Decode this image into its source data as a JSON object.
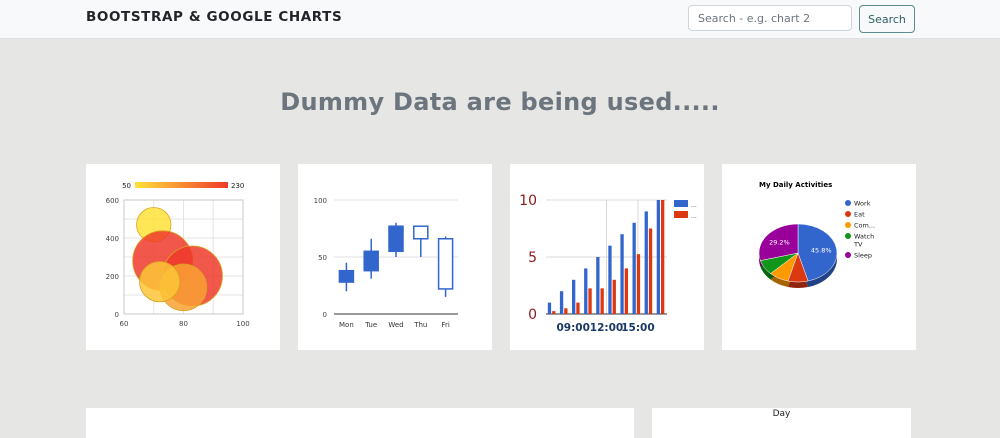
{
  "navbar": {
    "brand": "BOOTSTRAP & GOOGLE CHARTS",
    "search_placeholder": "Search - e.g. chart 2",
    "search_button": "Search"
  },
  "headline": "Dummy Data are being used.....",
  "colors": {
    "bar_blue": "#3366cc",
    "bar_red": "#dc3912",
    "pie_orange": "#ff9900",
    "pie_green": "#109618",
    "pie_purple": "#990099"
  },
  "chart_data": [
    {
      "type": "scatter",
      "subtype": "bubble",
      "xlim": [
        60,
        100
      ],
      "ylim": [
        0,
        600
      ],
      "x_ticks": [
        "60",
        "80",
        "100"
      ],
      "y_ticks": [
        "0",
        "200",
        "400",
        "600"
      ],
      "color_axis": {
        "min": "50",
        "max": "230"
      },
      "points": [
        {
          "x": 70,
          "y": 470,
          "size": 50
        },
        {
          "x": 73,
          "y": 280,
          "size": 230
        },
        {
          "x": 83,
          "y": 200,
          "size": 230
        },
        {
          "x": 80,
          "y": 140,
          "size": 120
        },
        {
          "x": 72,
          "y": 170,
          "size": 80
        }
      ]
    },
    {
      "type": "candlestick",
      "categories": [
        "Mon",
        "Tue",
        "Wed",
        "Thu",
        "Fri"
      ],
      "ylim": [
        0,
        100
      ],
      "y_ticks": [
        "0",
        "50",
        "100"
      ],
      "candles": [
        {
          "low": 20,
          "open": 28,
          "close": 38,
          "high": 45
        },
        {
          "low": 31,
          "open": 38,
          "close": 55,
          "high": 66
        },
        {
          "low": 50,
          "open": 55,
          "close": 77,
          "high": 80
        },
        {
          "low": 50,
          "open": 77,
          "close": 66,
          "high": 77
        },
        {
          "low": 15,
          "open": 66,
          "close": 22,
          "high": 68
        }
      ]
    },
    {
      "type": "bar",
      "ylim": [
        0,
        10
      ],
      "y_ticks": [
        "0",
        "5",
        "10"
      ],
      "x_ticks": [
        "09:00",
        "12:00",
        "15:00"
      ],
      "legend": {
        "position": "top-right",
        "labels": [
          "...",
          "..."
        ]
      },
      "series": [
        {
          "values": [
            1,
            2,
            3,
            4,
            5,
            6,
            7,
            8,
            9,
            10
          ]
        },
        {
          "values": [
            0.25,
            0.5,
            1,
            2.25,
            2.25,
            3,
            4,
            5.25,
            7.5,
            10
          ]
        }
      ]
    },
    {
      "type": "pie",
      "title": "My Daily Activities",
      "legend": {
        "position": "right"
      },
      "slices": [
        {
          "label": "Work",
          "value": 45.8,
          "color": "#3366cc",
          "pct_label": "45.8%"
        },
        {
          "label": "Eat",
          "value": 8.3,
          "color": "#dc3912"
        },
        {
          "label": "Com...",
          "value": 8.3,
          "color": "#ff9900"
        },
        {
          "label": "Watch TV",
          "value": 8.3,
          "color": "#109618"
        },
        {
          "label": "Sleep",
          "value": 29.2,
          "color": "#990099",
          "pct_label": "29.2%"
        }
      ],
      "legend_lines": [
        [
          "Work"
        ],
        [
          "Eat"
        ],
        [
          "Com..."
        ],
        [
          "Watch",
          "TV"
        ],
        [
          "Sleep"
        ]
      ]
    }
  ],
  "bottom": {
    "day_label": "Day"
  }
}
